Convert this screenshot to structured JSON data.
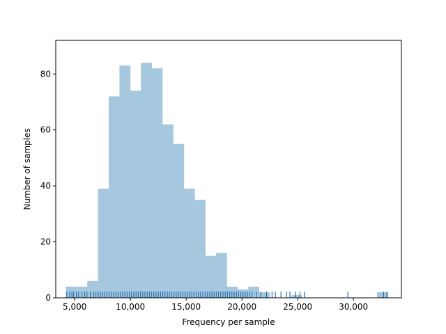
{
  "chart_data": {
    "type": "bar",
    "title": "",
    "xlabel": "Frequency per sample",
    "ylabel": "Number of samples",
    "xlim": [
      3300,
      34300
    ],
    "ylim": [
      0,
      92
    ],
    "x_ticks": [
      5000,
      10000,
      15000,
      20000,
      25000,
      30000
    ],
    "x_tick_labels": [
      "5,000",
      "10,000",
      "15,000",
      "20,000",
      "25,000",
      "30,000"
    ],
    "y_ticks": [
      0,
      20,
      40,
      60,
      80
    ],
    "y_tick_labels": [
      "0",
      "20",
      "40",
      "60",
      "80"
    ],
    "bin_start": 4200,
    "bin_width": 962.5,
    "counts": [
      4,
      4,
      6,
      39,
      72,
      83,
      74,
      84,
      82,
      62,
      55,
      39,
      35,
      15,
      16,
      4,
      3,
      4,
      2,
      0,
      0,
      1,
      0,
      0,
      0,
      0,
      0,
      0,
      0,
      2
    ],
    "rug_samples": [
      4300,
      4550,
      4750,
      4900,
      5150,
      5350,
      5650,
      5900,
      6100,
      6400,
      6700,
      6900,
      7100,
      7300,
      7500,
      7700,
      7900,
      8100,
      8300,
      8500,
      8700,
      8900,
      9100,
      9300,
      9500,
      9700,
      9900,
      10100,
      10300,
      10500,
      10700,
      10900,
      11100,
      11300,
      11500,
      11700,
      11900,
      12100,
      12300,
      12500,
      12700,
      12900,
      13100,
      13300,
      13500,
      13700,
      13900,
      14100,
      14300,
      14500,
      14700,
      14900,
      15100,
      15300,
      15500,
      15700,
      15900,
      16100,
      16300,
      16500,
      16700,
      16900,
      17100,
      17300,
      17500,
      17700,
      17900,
      18100,
      18300,
      18500,
      18700,
      18900,
      19100,
      19300,
      19500,
      19700,
      19900,
      20100,
      20300,
      20500,
      20700,
      20900,
      21300,
      21700,
      22200,
      22700,
      23000,
      23500,
      24000,
      24300,
      24800,
      25200,
      25600,
      29500,
      32700,
      33000
    ],
    "bar_color": "#a6c8df",
    "rug_color": "#2a72b0",
    "grid": false,
    "legend": "none"
  }
}
